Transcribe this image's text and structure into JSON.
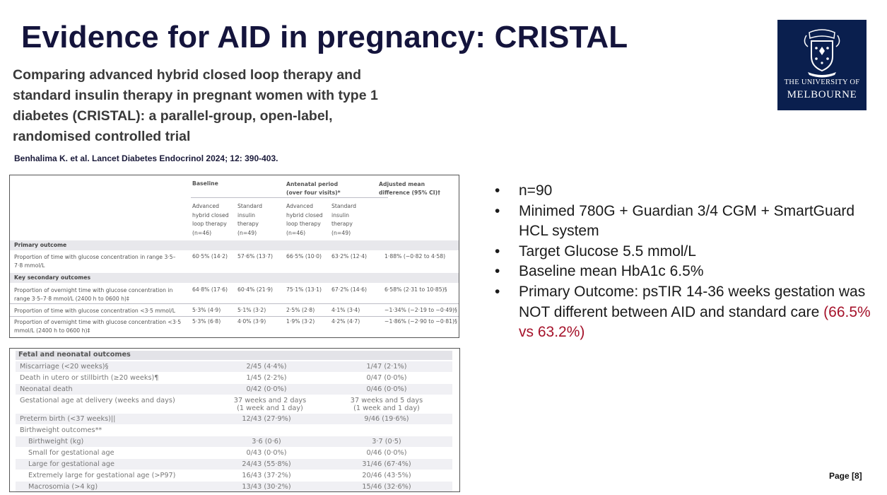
{
  "slide": {
    "title": "Evidence for AID in pregnancy: CRISTAL",
    "paper_title": "Comparing advanced hybrid closed loop therapy and standard insulin therapy in pregnant women with type 1 diabetes (CRISTAL): a parallel-group, open-label, randomised controlled trial",
    "citation": "Benhalima K. et al. Lancet Diabetes Endocrinol 2024; 12: 390-403.",
    "page_label": "Page [8]"
  },
  "logo": {
    "line1": "THE UNIVERSITY OF",
    "line2": "MELBOURNE",
    "bg_color": "#0a1f4e",
    "icon": "university-crest-icon"
  },
  "table1": {
    "group_baseline": "Baseline",
    "group_antenatal": "Antenatal period (over four visits)*",
    "group_diff": "Adjusted mean difference (95% CI)†",
    "sub_ahcl": "Advanced hybrid closed loop therapy (n=46)",
    "sub_std": "Standard insulin therapy (n=49)",
    "primary_label": "Primary outcome",
    "secondary_label": "Key secondary outcomes",
    "rows": [
      {
        "label": "Proportion of time with glucose concentration in range 3·5–7·8 mmol/L",
        "b_ahcl": "60·5% (14·2)",
        "b_std": "57·6% (13·7)",
        "a_ahcl": "66·5% (10·0)",
        "a_std": "63·2% (12·4)",
        "diff": "1·88% (−0·82 to 4·58)"
      },
      {
        "label": "Proportion of overnight time with glucose concentration in range 3·5–7·8 mmol/L (2400 h to 0600 h)‡",
        "b_ahcl": "64·8% (17·6)",
        "b_std": "60·4% (21·9)",
        "a_ahcl": "75·1% (13·1)",
        "a_std": "67·2% (14·6)",
        "diff": "6·58% (2·31 to 10·85)§"
      },
      {
        "label": "Proportion of time with glucose concentration <3·5 mmol/L",
        "b_ahcl": "5·3% (4·9)",
        "b_std": "5·1% (3·2)",
        "a_ahcl": "2·5% (2·8)",
        "a_std": "4·1% (3·4)",
        "diff": "−1·34% (−2·19 to −0·49)§"
      },
      {
        "label": "Proportion of overnight time with glucose concentration <3·5 mmol/L (2400 h to 0600 h)‡",
        "b_ahcl": "5·3% (6·8)",
        "b_std": "4·0% (3·9)",
        "a_ahcl": "1·9% (3·2)",
        "a_std": "4·2% (4·7)",
        "diff": "−1·86% (−2·90 to −0·81)§"
      }
    ]
  },
  "table2": {
    "header": "Fetal and neonatal outcomes",
    "rows": [
      {
        "label": "Miscarriage (<20 weeks)§",
        "a": "2/45 (4·4%)",
        "b": "1/47 (2·1%)"
      },
      {
        "label": "Death in utero or stillbirth (≥20 weeks)¶",
        "a": "1/45 (2·2%)",
        "b": "0/47 (0·0%)"
      },
      {
        "label": "Neonatal death",
        "a": "0/42 (0·0%)",
        "b": "0/46 (0·0%)"
      },
      {
        "label": "Gestational age at delivery (weeks and days)",
        "a": "37 weeks and 2 days",
        "a2": "(1 week and 1 day)",
        "b": "37 weeks and 5 days",
        "b2": "(1 week and 1 day)"
      },
      {
        "label": "Preterm birth (<37 weeks)||",
        "a": "12/43 (27·9%)",
        "b": "9/46 (19·6%)"
      },
      {
        "label": "Birthweight outcomes**",
        "a": "",
        "b": ""
      },
      {
        "label": "Birthweight (kg)",
        "a": "3·6 (0·6)",
        "b": "3·7 (0·5)"
      },
      {
        "label": "Small for gestational age",
        "a": "0/43 (0·0%)",
        "b": "0/46 (0·0%)"
      },
      {
        "label": "Large for gestational age",
        "a": "24/43 (55·8%)",
        "b": "31/46 (67·4%)"
      },
      {
        "label": "Extremely large for gestational age (>P97)",
        "a": "16/43 (37·2%)",
        "b": "20/46 (43·5%)"
      },
      {
        "label": "Macrosomia (>4 kg)",
        "a": "13/43 (30·2%)",
        "b": "15/46 (32·6%)"
      }
    ]
  },
  "bullets": {
    "b1": "n=90",
    "b2": "Minimed 780G + Guardian 3/4 CGM + SmartGuard HCL system",
    "b3": "Target Glucose 5.5 mmol/L",
    "b4": "Baseline mean HbA1c 6.5%",
    "b5_text": "Primary Outcome: psTIR 14-36 weeks gestation was NOT different between AID and standard care ",
    "b5_highlight": "(66.5% vs 63.2%)",
    "marker": "•",
    "highlight_color": "#a5122a"
  }
}
